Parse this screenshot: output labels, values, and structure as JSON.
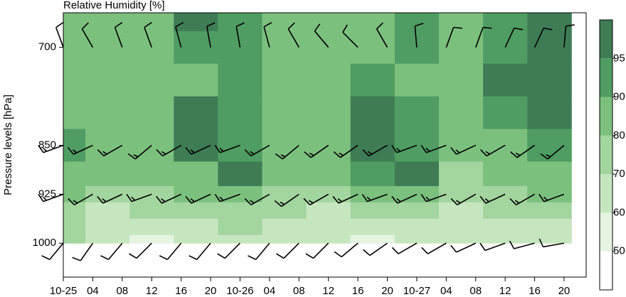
{
  "chart_data": {
    "type": "contour",
    "title": "Relative Humidity [%]",
    "y_label": "Pressure levels [hPa]",
    "xlim": [
      0,
      71
    ],
    "xticks": [
      {
        "value": 0,
        "label": "10-25"
      },
      {
        "value": 4,
        "label": "04"
      },
      {
        "value": 8,
        "label": "08"
      },
      {
        "value": 12,
        "label": "12"
      },
      {
        "value": 16,
        "label": "16"
      },
      {
        "value": 20,
        "label": "20"
      },
      {
        "value": 24,
        "label": "10-26"
      },
      {
        "value": 28,
        "label": "04"
      },
      {
        "value": 32,
        "label": "08"
      },
      {
        "value": 36,
        "label": "12"
      },
      {
        "value": 40,
        "label": "16"
      },
      {
        "value": 44,
        "label": "20"
      },
      {
        "value": 48,
        "label": "10-27"
      },
      {
        "value": 52,
        "label": "04"
      },
      {
        "value": 56,
        "label": "08"
      },
      {
        "value": 60,
        "label": "12"
      },
      {
        "value": 64,
        "label": "16"
      },
      {
        "value": 68,
        "label": "20"
      }
    ],
    "ylim": [
      1052,
      647
    ],
    "yticks": [
      700,
      850,
      925,
      1000
    ],
    "times": [
      0,
      6,
      12,
      18,
      24,
      30,
      36,
      42,
      48,
      54,
      60,
      66
    ],
    "levels": [
      650,
      700,
      750,
      800,
      850,
      900,
      925,
      950,
      975,
      1000
    ],
    "values": [
      [
        85,
        85,
        88,
        96,
        92,
        85,
        85,
        87,
        90,
        88,
        92,
        96
      ],
      [
        85,
        85,
        87,
        93,
        92,
        85,
        85,
        88,
        91,
        88,
        92,
        96
      ],
      [
        84,
        83,
        84,
        88,
        92,
        85,
        85,
        92,
        88,
        84,
        95,
        97
      ],
      [
        86,
        82,
        82,
        95,
        90,
        84,
        86,
        96,
        90,
        84,
        90,
        96
      ],
      [
        92,
        84,
        82,
        96,
        94,
        84,
        84,
        96,
        94,
        84,
        86,
        92
      ],
      [
        88,
        82,
        81,
        88,
        96,
        80,
        80,
        90,
        95,
        70,
        82,
        86
      ],
      [
        84,
        76,
        78,
        82,
        86,
        78,
        78,
        82,
        88,
        70,
        78,
        80
      ],
      [
        74,
        68,
        72,
        74,
        74,
        72,
        66,
        70,
        74,
        66,
        72,
        74
      ],
      [
        70,
        62,
        60,
        66,
        70,
        68,
        62,
        60,
        68,
        62,
        60,
        68
      ],
      [
        70,
        64,
        56,
        62,
        66,
        64,
        66,
        52,
        64,
        60,
        62,
        66
      ]
    ],
    "colorbar": {
      "levels": [
        50,
        60,
        70,
        80,
        90,
        95
      ],
      "colors": [
        "#ffffff",
        "#e6f4e2",
        "#c6e6c0",
        "#a3d59e",
        "#7cc07e",
        "#4f9d62",
        "#3f7c55"
      ]
    },
    "wind": {
      "times": [
        0,
        4,
        8,
        12,
        16,
        20,
        24,
        28,
        32,
        36,
        40,
        44,
        48,
        52,
        56,
        60,
        64,
        68
      ],
      "levels": [
        700,
        850,
        925,
        1000
      ],
      "direction": [
        [
          340,
          330,
          340,
          340,
          345,
          350,
          350,
          345,
          330,
          320,
          315,
          330,
          355,
          20,
          20,
          25,
          25,
          5
        ],
        [
          250,
          245,
          240,
          230,
          240,
          245,
          250,
          240,
          230,
          235,
          235,
          240,
          250,
          250,
          245,
          240,
          235,
          230
        ],
        [
          250,
          240,
          245,
          250,
          245,
          245,
          250,
          240,
          235,
          240,
          245,
          250,
          245,
          250,
          240,
          245,
          240,
          250
        ],
        [
          220,
          215,
          220,
          225,
          220,
          220,
          225,
          220,
          225,
          225,
          230,
          235,
          240,
          240,
          245,
          250,
          255,
          260
        ]
      ],
      "speed": [
        [
          10,
          10,
          10,
          10,
          10,
          10,
          10,
          10,
          10,
          10,
          10,
          10,
          10,
          10,
          10,
          10,
          10,
          10
        ],
        [
          15,
          15,
          15,
          15,
          15,
          15,
          15,
          15,
          15,
          15,
          15,
          15,
          15,
          15,
          15,
          15,
          15,
          15
        ],
        [
          15,
          15,
          15,
          15,
          15,
          15,
          15,
          15,
          15,
          15,
          15,
          15,
          15,
          15,
          15,
          15,
          15,
          15
        ],
        [
          10,
          10,
          10,
          10,
          10,
          10,
          10,
          10,
          10,
          10,
          10,
          10,
          10,
          10,
          10,
          10,
          10,
          10
        ]
      ]
    }
  }
}
